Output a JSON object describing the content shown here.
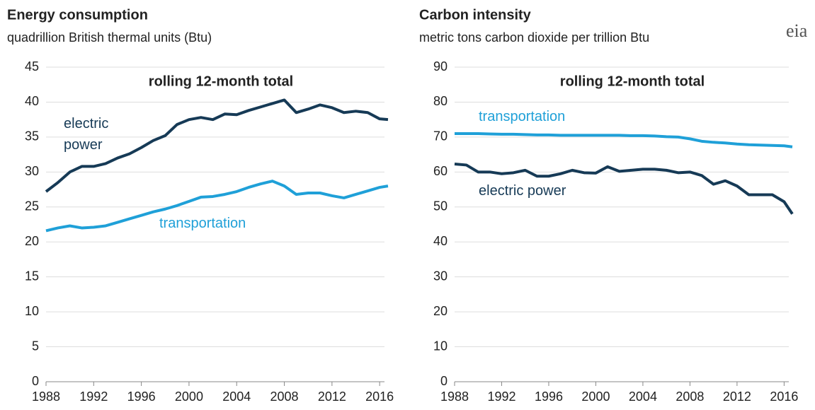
{
  "logo": "eia",
  "chart_data": [
    {
      "type": "line",
      "title": "Energy consumption",
      "subtitle": "quadrillion British thermal units (Btu)",
      "annotation": "rolling 12-month total",
      "x": [
        1988,
        1989,
        1990,
        1991,
        1992,
        1993,
        1994,
        1995,
        1996,
        1997,
        1998,
        1999,
        2000,
        2001,
        2002,
        2003,
        2004,
        2005,
        2006,
        2007,
        2008,
        2009,
        2010,
        2011,
        2012,
        2013,
        2014,
        2015,
        2016,
        2016.7
      ],
      "series": [
        {
          "name": "electric power",
          "color": "#163a56",
          "values": [
            27.2,
            28.5,
            30.0,
            30.8,
            30.8,
            31.2,
            32.0,
            32.6,
            33.5,
            34.5,
            35.2,
            36.8,
            37.5,
            37.8,
            37.5,
            38.3,
            38.2,
            38.8,
            39.3,
            39.8,
            40.3,
            38.5,
            39.0,
            39.6,
            39.2,
            38.5,
            38.7,
            38.5,
            37.6,
            37.5
          ]
        },
        {
          "name": "transportation",
          "color": "#1fa0d8",
          "values": [
            21.6,
            22.0,
            22.3,
            22.0,
            22.1,
            22.3,
            22.8,
            23.3,
            23.8,
            24.3,
            24.7,
            25.2,
            25.8,
            26.4,
            26.5,
            26.8,
            27.2,
            27.8,
            28.3,
            28.7,
            28.0,
            26.8,
            27.0,
            27.0,
            26.6,
            26.3,
            26.8,
            27.3,
            27.8,
            28.0
          ]
        }
      ],
      "xlim": [
        1988,
        2017
      ],
      "xticks": [
        1988,
        1992,
        1996,
        2000,
        2004,
        2008,
        2012,
        2016
      ],
      "ylim": [
        0,
        45
      ],
      "yticks": [
        0,
        5,
        10,
        15,
        20,
        25,
        30,
        35,
        40,
        45
      ],
      "grid": true
    },
    {
      "type": "line",
      "title": "Carbon intensity",
      "subtitle": "metric tons carbon dioxide per trillion Btu",
      "annotation": "rolling 12-month total",
      "x": [
        1988,
        1989,
        1990,
        1991,
        1992,
        1993,
        1994,
        1995,
        1996,
        1997,
        1998,
        1999,
        2000,
        2001,
        2002,
        2003,
        2004,
        2005,
        2006,
        2007,
        2008,
        2009,
        2010,
        2011,
        2012,
        2013,
        2014,
        2015,
        2016,
        2016.7
      ],
      "series": [
        {
          "name": "transportation",
          "color": "#1fa0d8",
          "values": [
            71,
            71,
            71,
            70.9,
            70.8,
            70.8,
            70.7,
            70.6,
            70.6,
            70.5,
            70.5,
            70.5,
            70.5,
            70.5,
            70.5,
            70.4,
            70.4,
            70.3,
            70.1,
            70,
            69.5,
            68.8,
            68.5,
            68.3,
            68,
            67.8,
            67.7,
            67.6,
            67.5,
            67.2
          ]
        },
        {
          "name": "electric power",
          "color": "#163a56",
          "values": [
            62.3,
            62,
            60,
            60,
            59.5,
            59.8,
            60.5,
            58.8,
            58.8,
            59.5,
            60.5,
            59.8,
            59.7,
            61.5,
            60.2,
            60.5,
            60.8,
            60.8,
            60.5,
            59.8,
            60,
            59,
            56.5,
            57.5,
            56,
            53.5,
            53.5,
            53.5,
            51.5,
            48
          ]
        }
      ],
      "xlim": [
        1988,
        2017
      ],
      "xticks": [
        1988,
        1992,
        1996,
        2000,
        2004,
        2008,
        2012,
        2016
      ],
      "ylim": [
        0,
        90
      ],
      "yticks": [
        0,
        10,
        20,
        30,
        40,
        50,
        60,
        70,
        80,
        90
      ],
      "grid": true
    }
  ]
}
